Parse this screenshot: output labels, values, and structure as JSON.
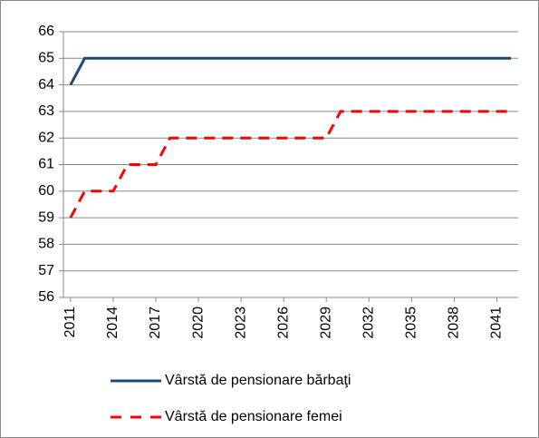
{
  "chart_data": {
    "type": "line",
    "x": [
      2011,
      2012,
      2013,
      2014,
      2015,
      2016,
      2017,
      2018,
      2019,
      2020,
      2021,
      2022,
      2023,
      2024,
      2025,
      2026,
      2027,
      2028,
      2029,
      2030,
      2031,
      2032,
      2033,
      2034,
      2035,
      2036,
      2037,
      2038,
      2039,
      2040,
      2041,
      2042
    ],
    "series": [
      {
        "name": "Vârstă de pensionare bărbaţi",
        "color": "#1f497d",
        "dash": "solid",
        "values": [
          64,
          65,
          65,
          65,
          65,
          65,
          65,
          65,
          65,
          65,
          65,
          65,
          65,
          65,
          65,
          65,
          65,
          65,
          65,
          65,
          65,
          65,
          65,
          65,
          65,
          65,
          65,
          65,
          65,
          65,
          65,
          65
        ]
      },
      {
        "name": "Vârstă de pensionare femei",
        "color": "#ff0000",
        "dash": "dashed",
        "values": [
          59,
          60,
          60,
          60,
          61,
          61,
          61,
          62,
          62,
          62,
          62,
          62,
          62,
          62,
          62,
          62,
          62,
          62,
          62,
          63,
          63,
          63,
          63,
          63,
          63,
          63,
          63,
          63,
          63,
          63,
          63,
          63
        ]
      }
    ],
    "xlim": [
      2010.5,
      2042.5
    ],
    "xticks": [
      2011,
      2014,
      2017,
      2020,
      2023,
      2026,
      2029,
      2032,
      2035,
      2038,
      2041
    ],
    "ylim": [
      56,
      66
    ],
    "yticks": [
      56,
      57,
      58,
      59,
      60,
      61,
      62,
      63,
      64,
      65,
      66
    ],
    "grid": true,
    "legend": "bottom"
  }
}
